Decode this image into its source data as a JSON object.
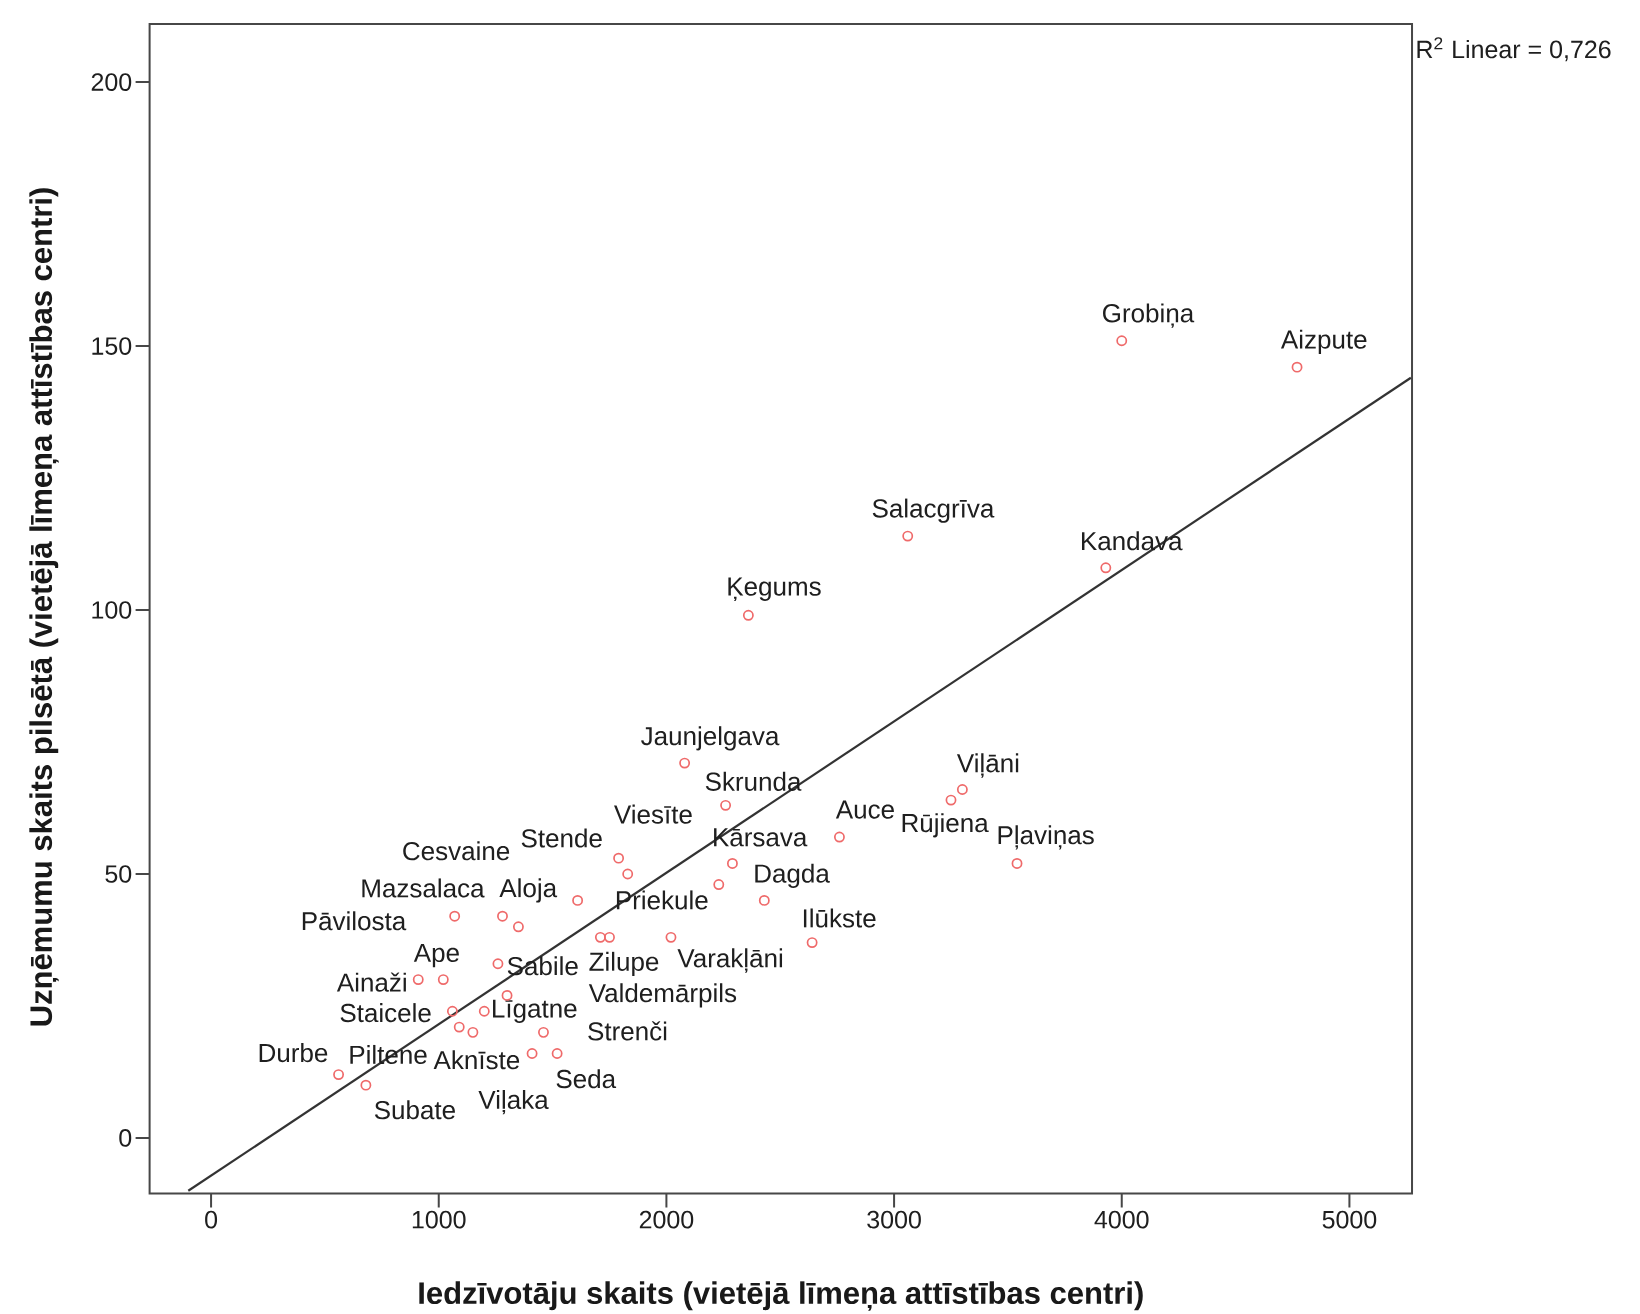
{
  "chart_data": {
    "type": "scatter",
    "xlabel": "Iedzīvotāju skaits (vietējā līmeņa attīstības centri)",
    "ylabel": "Uzņēmumu skaits pilsētā (vietējā līmeņa attīstības centri)",
    "xlim": [
      -270,
      5275
    ],
    "ylim": [
      -10.5,
      211
    ],
    "xticks": [
      0,
      1000,
      2000,
      3000,
      4000,
      5000
    ],
    "yticks": [
      0,
      50,
      100,
      150,
      200
    ],
    "series": [
      {
        "type": "scatter",
        "color": "#ef6a6a",
        "marker": "circle",
        "x": [
          4000,
          4770,
          3060,
          3930,
          2360,
          2080,
          2260,
          3300,
          2760,
          3250,
          3540,
          1790,
          1830,
          1610,
          2290,
          1070,
          1280,
          2430,
          2230,
          1350,
          2640,
          1020,
          1260,
          1710,
          2020,
          910,
          1300,
          1060,
          1200,
          1460,
          560,
          680,
          1150,
          1520,
          1410,
          1750,
          1090
        ],
        "values": [
          151,
          146,
          114,
          108,
          99,
          71,
          63,
          66,
          57,
          64,
          52,
          53,
          50,
          45,
          52,
          42,
          42,
          45,
          48,
          40,
          37,
          30,
          33,
          38,
          38,
          30,
          27,
          24,
          24,
          20,
          12,
          10,
          20,
          16,
          16,
          38,
          21
        ]
      },
      {
        "type": "line",
        "color": "#333333",
        "line_style": "solid",
        "x": [
          -100,
          5270
        ],
        "values": [
          -10,
          144
        ]
      }
    ],
    "annotations": [
      "R$^{2}$ Linear = 0,726",
      {
        "text": "Grobiņa",
        "x": 4000,
        "y": 151
      },
      {
        "text": "Aizpute",
        "x": 4770,
        "y": 146
      },
      {
        "text": "Salacgrīva",
        "x": 3060,
        "y": 114
      },
      {
        "text": "Kandava",
        "x": 3930,
        "y": 108
      },
      {
        "text": "Ķegums",
        "x": 2360,
        "y": 99
      },
      {
        "text": "Jaunjelgava",
        "x": 2080,
        "y": 71
      },
      {
        "text": "Skrunda",
        "x": 2260,
        "y": 63
      },
      {
        "text": "Viļāni",
        "x": 3300,
        "y": 66
      },
      {
        "text": "Auce",
        "x": 2760,
        "y": 57
      },
      {
        "text": "Rūjiena",
        "x": 3250,
        "y": 64
      },
      {
        "text": "Pļaviņas",
        "x": 3540,
        "y": 52
      },
      {
        "text": "Viesīte",
        "x": 1790,
        "y": 53
      },
      {
        "text": "Stende",
        "x": 1830,
        "y": 50
      },
      {
        "text": "Cesvaine",
        "x": 1280,
        "y": 42
      },
      {
        "text": "Kārsava",
        "x": 2290,
        "y": 52
      },
      {
        "text": "Mazsalaca",
        "x": 1350,
        "y": 40
      },
      {
        "text": "Aloja",
        "x": 1610,
        "y": 45
      },
      {
        "text": "Dagda",
        "x": 2430,
        "y": 45
      },
      {
        "text": "Priekule",
        "x": 2230,
        "y": 48
      },
      {
        "text": "Pāvilosta",
        "x": 1070,
        "y": 42
      },
      {
        "text": "Ilūkste",
        "x": 2640,
        "y": 37
      },
      {
        "text": "Ape",
        "x": 1020,
        "y": 30
      },
      {
        "text": "Sabile",
        "x": 1260,
        "y": 33
      },
      {
        "text": "Zilupe",
        "x": 1710,
        "y": 38
      },
      {
        "text": "Varakļāni",
        "x": 2020,
        "y": 38
      },
      {
        "text": "Ainaži",
        "x": 910,
        "y": 30
      },
      {
        "text": "Valdemārpils",
        "x": 1750,
        "y": 38
      },
      {
        "text": "Staicele",
        "x": 1060,
        "y": 24
      },
      {
        "text": "Līgatne",
        "x": 1200,
        "y": 24
      },
      {
        "text": "Strenči",
        "x": 1460,
        "y": 20
      },
      {
        "text": "Durbe",
        "x": 560,
        "y": 12
      },
      {
        "text": "Piltene",
        "x": 1090,
        "y": 21
      },
      {
        "text": "Aknīste",
        "x": 1150,
        "y": 20
      },
      {
        "text": "Seda",
        "x": 1520,
        "y": 16
      },
      {
        "text": "Subate",
        "x": 680,
        "y": 10
      },
      {
        "text": "Viļaka",
        "x": 1410,
        "y": 16
      }
    ]
  }
}
